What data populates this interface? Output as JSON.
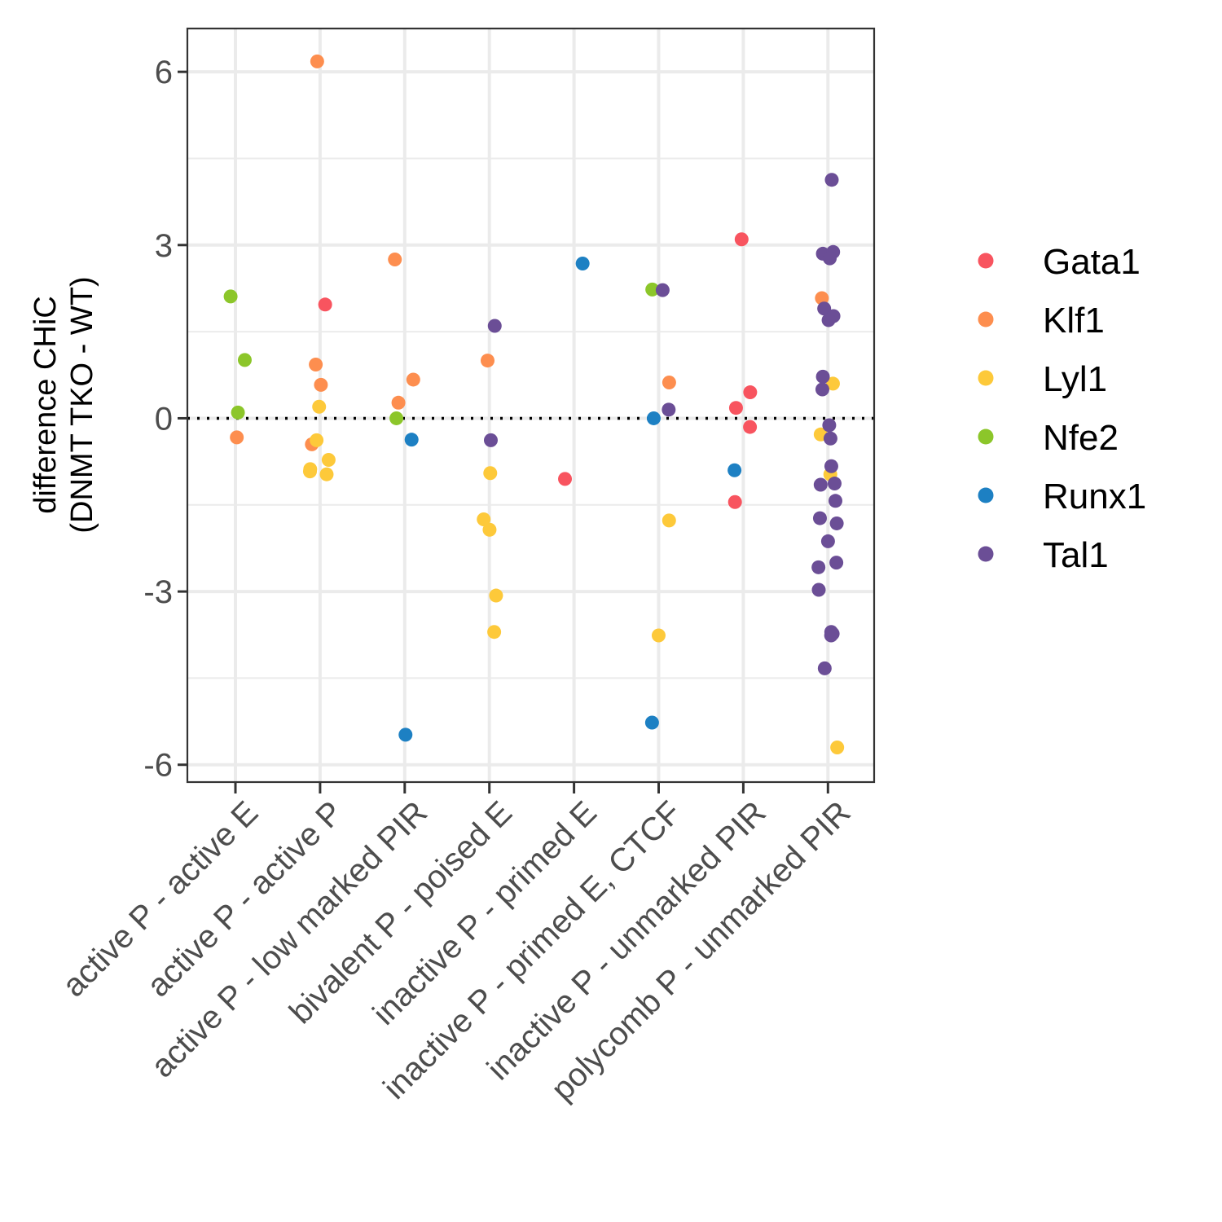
{
  "chart_data": {
    "type": "scatter",
    "title": "",
    "xlabel": "",
    "ylabel_lines": [
      "difference CHiC",
      "(DNMT TKO - WT)"
    ],
    "categories": [
      "active P - active E",
      "active P - active P",
      "active P - low marked PIR",
      "bivalent P - poised E",
      "inactive P - primed E",
      "inactive P - primed E, CTCF",
      "inactive P - unmarked PIR",
      "polycomb P - unmarked PIR"
    ],
    "ylim": [
      -6.3,
      6.75
    ],
    "yticks": [
      -6,
      -3,
      0,
      3,
      6
    ],
    "ytick_labels": [
      "-6",
      "-3",
      "0",
      "3",
      "6"
    ],
    "grid": true,
    "reference_line": {
      "y": 0,
      "style": "dotted"
    },
    "legend_position": "right",
    "series": [
      {
        "name": "Gata1",
        "color": "#F8545F",
        "points": [
          {
            "cat": 2,
            "y": 1.97
          },
          {
            "cat": 5,
            "y": -1.05
          },
          {
            "cat": 7,
            "y": 3.1
          },
          {
            "cat": 7,
            "y": 0.45
          },
          {
            "cat": 7,
            "y": 0.18
          },
          {
            "cat": 7,
            "y": -0.15
          },
          {
            "cat": 7,
            "y": -1.45
          }
        ]
      },
      {
        "name": "Klf1",
        "color": "#FD8E4F",
        "points": [
          {
            "cat": 1,
            "y": -0.33
          },
          {
            "cat": 2,
            "y": 6.18
          },
          {
            "cat": 2,
            "y": 0.93
          },
          {
            "cat": 2,
            "y": 0.58
          },
          {
            "cat": 2,
            "y": -0.45
          },
          {
            "cat": 3,
            "y": 2.75
          },
          {
            "cat": 3,
            "y": 0.67
          },
          {
            "cat": 3,
            "y": 0.27
          },
          {
            "cat": 4,
            "y": 1.0
          },
          {
            "cat": 6,
            "y": 0.62
          },
          {
            "cat": 8,
            "y": 2.08
          }
        ]
      },
      {
        "name": "Lyl1",
        "color": "#FDC93A",
        "points": [
          {
            "cat": 2,
            "y": 0.2
          },
          {
            "cat": 2,
            "y": -0.38
          },
          {
            "cat": 2,
            "y": -0.72
          },
          {
            "cat": 2,
            "y": -0.88
          },
          {
            "cat": 2,
            "y": -0.97
          },
          {
            "cat": 2,
            "y": -0.92
          },
          {
            "cat": 4,
            "y": -0.95
          },
          {
            "cat": 4,
            "y": -1.75
          },
          {
            "cat": 4,
            "y": -1.93
          },
          {
            "cat": 4,
            "y": -3.07
          },
          {
            "cat": 4,
            "y": -3.7
          },
          {
            "cat": 6,
            "y": -1.77
          },
          {
            "cat": 6,
            "y": -3.76
          },
          {
            "cat": 8,
            "y": 0.6
          },
          {
            "cat": 8,
            "y": -0.28
          },
          {
            "cat": 8,
            "y": -0.97
          },
          {
            "cat": 8,
            "y": -5.7
          }
        ]
      },
      {
        "name": "Nfe2",
        "color": "#8CC62A",
        "points": [
          {
            "cat": 1,
            "y": 2.11
          },
          {
            "cat": 1,
            "y": 1.01
          },
          {
            "cat": 1,
            "y": 0.1
          },
          {
            "cat": 3,
            "y": 0.0
          },
          {
            "cat": 6,
            "y": 2.23
          }
        ]
      },
      {
        "name": "Runx1",
        "color": "#1D80C3",
        "points": [
          {
            "cat": 3,
            "y": -0.37
          },
          {
            "cat": 3,
            "y": -5.48
          },
          {
            "cat": 5,
            "y": 2.68
          },
          {
            "cat": 6,
            "y": 0.0
          },
          {
            "cat": 6,
            "y": -5.27
          },
          {
            "cat": 7,
            "y": -0.9
          }
        ]
      },
      {
        "name": "Tal1",
        "color": "#6B4E96",
        "points": [
          {
            "cat": 4,
            "y": 1.6
          },
          {
            "cat": 4,
            "y": -0.38
          },
          {
            "cat": 6,
            "y": 2.22
          },
          {
            "cat": 6,
            "y": 0.15
          },
          {
            "cat": 8,
            "y": 4.13
          },
          {
            "cat": 8,
            "y": 2.85
          },
          {
            "cat": 8,
            "y": 2.88
          },
          {
            "cat": 8,
            "y": 2.77
          },
          {
            "cat": 8,
            "y": 1.9
          },
          {
            "cat": 8,
            "y": 1.77
          },
          {
            "cat": 8,
            "y": 1.7
          },
          {
            "cat": 8,
            "y": 0.72
          },
          {
            "cat": 8,
            "y": 0.5
          },
          {
            "cat": 8,
            "y": -0.12
          },
          {
            "cat": 8,
            "y": -0.35
          },
          {
            "cat": 8,
            "y": -0.83
          },
          {
            "cat": 8,
            "y": -1.13
          },
          {
            "cat": 8,
            "y": -1.15
          },
          {
            "cat": 8,
            "y": -1.43
          },
          {
            "cat": 8,
            "y": -1.73
          },
          {
            "cat": 8,
            "y": -1.82
          },
          {
            "cat": 8,
            "y": -2.13
          },
          {
            "cat": 8,
            "y": -2.5
          },
          {
            "cat": 8,
            "y": -2.58
          },
          {
            "cat": 8,
            "y": -2.97
          },
          {
            "cat": 8,
            "y": -3.73
          },
          {
            "cat": 8,
            "y": -3.76
          },
          {
            "cat": 8,
            "y": -3.7
          },
          {
            "cat": 8,
            "y": -4.33
          }
        ]
      }
    ]
  }
}
